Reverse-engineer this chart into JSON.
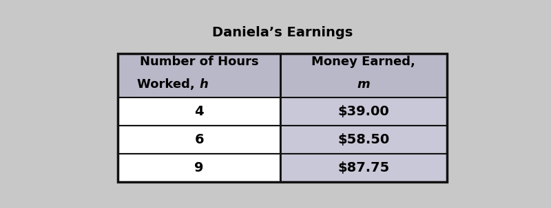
{
  "title": "Daniela’s Earnings",
  "col1_header_line1": "Number of Hours",
  "col1_header_line2": "Worked, ",
  "col1_header_italic": "h",
  "col2_header_line1": "Money Earned,",
  "col2_header_italic": "m",
  "rows": [
    [
      "4",
      "$39.00"
    ],
    [
      "6",
      "$58.50"
    ],
    [
      "9",
      "$87.75"
    ]
  ],
  "header_bg": "#b8b8c8",
  "data_row_bg": "#c8c8d8",
  "title_fontsize": 14,
  "header_fontsize": 13,
  "data_fontsize": 14,
  "text_color": "#000000",
  "border_color": "#111111",
  "bg_color": "#c8c8c8"
}
